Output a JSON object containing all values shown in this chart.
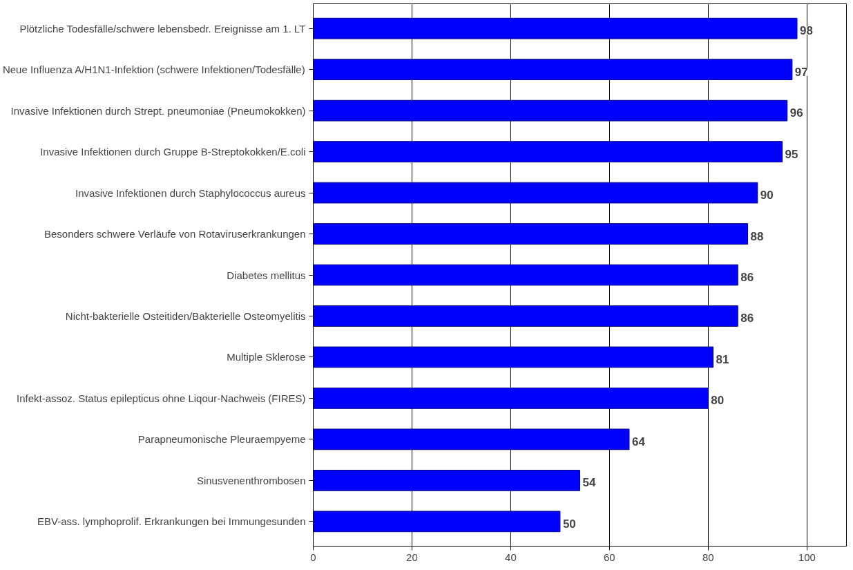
{
  "chart_data": {
    "type": "bar",
    "orientation": "horizontal",
    "categories": [
      "Plötzliche Todesfälle/schwere lebensbedr. Ereignisse am 1. LT",
      "Neue Influenza A/H1N1-Infektion (schwere Infektionen/Todesfälle)",
      "Invasive Infektionen durch Strept. pneumoniae (Pneumokokken)",
      "Invasive Infektionen durch Gruppe B-Streptokokken/E.coli",
      "Invasive Infektionen durch Staphylococcus aureus",
      "Besonders schwere Verläufe von Rotaviruserkrankungen",
      "Diabetes mellitus",
      "Nicht-bakterielle Osteitiden/Bakterielle Osteomyelitis",
      "Multiple Sklerose",
      "Infekt-assoz. Status epilepticus ohne Liqour-Nachweis (FIRES)",
      "Parapneumonische Pleuraempyeme",
      "Sinusvenenthrombosen",
      "EBV-ass. lymphoprolif. Erkrankungen bei Immungesunden"
    ],
    "values": [
      98,
      97,
      96,
      95,
      90,
      88,
      86,
      86,
      81,
      80,
      64,
      54,
      50
    ],
    "color": "#0000ff",
    "xlim": [
      0,
      108
    ],
    "xticks": [
      0,
      20,
      40,
      60,
      80,
      100
    ],
    "grid": "x",
    "data_labels": true
  }
}
